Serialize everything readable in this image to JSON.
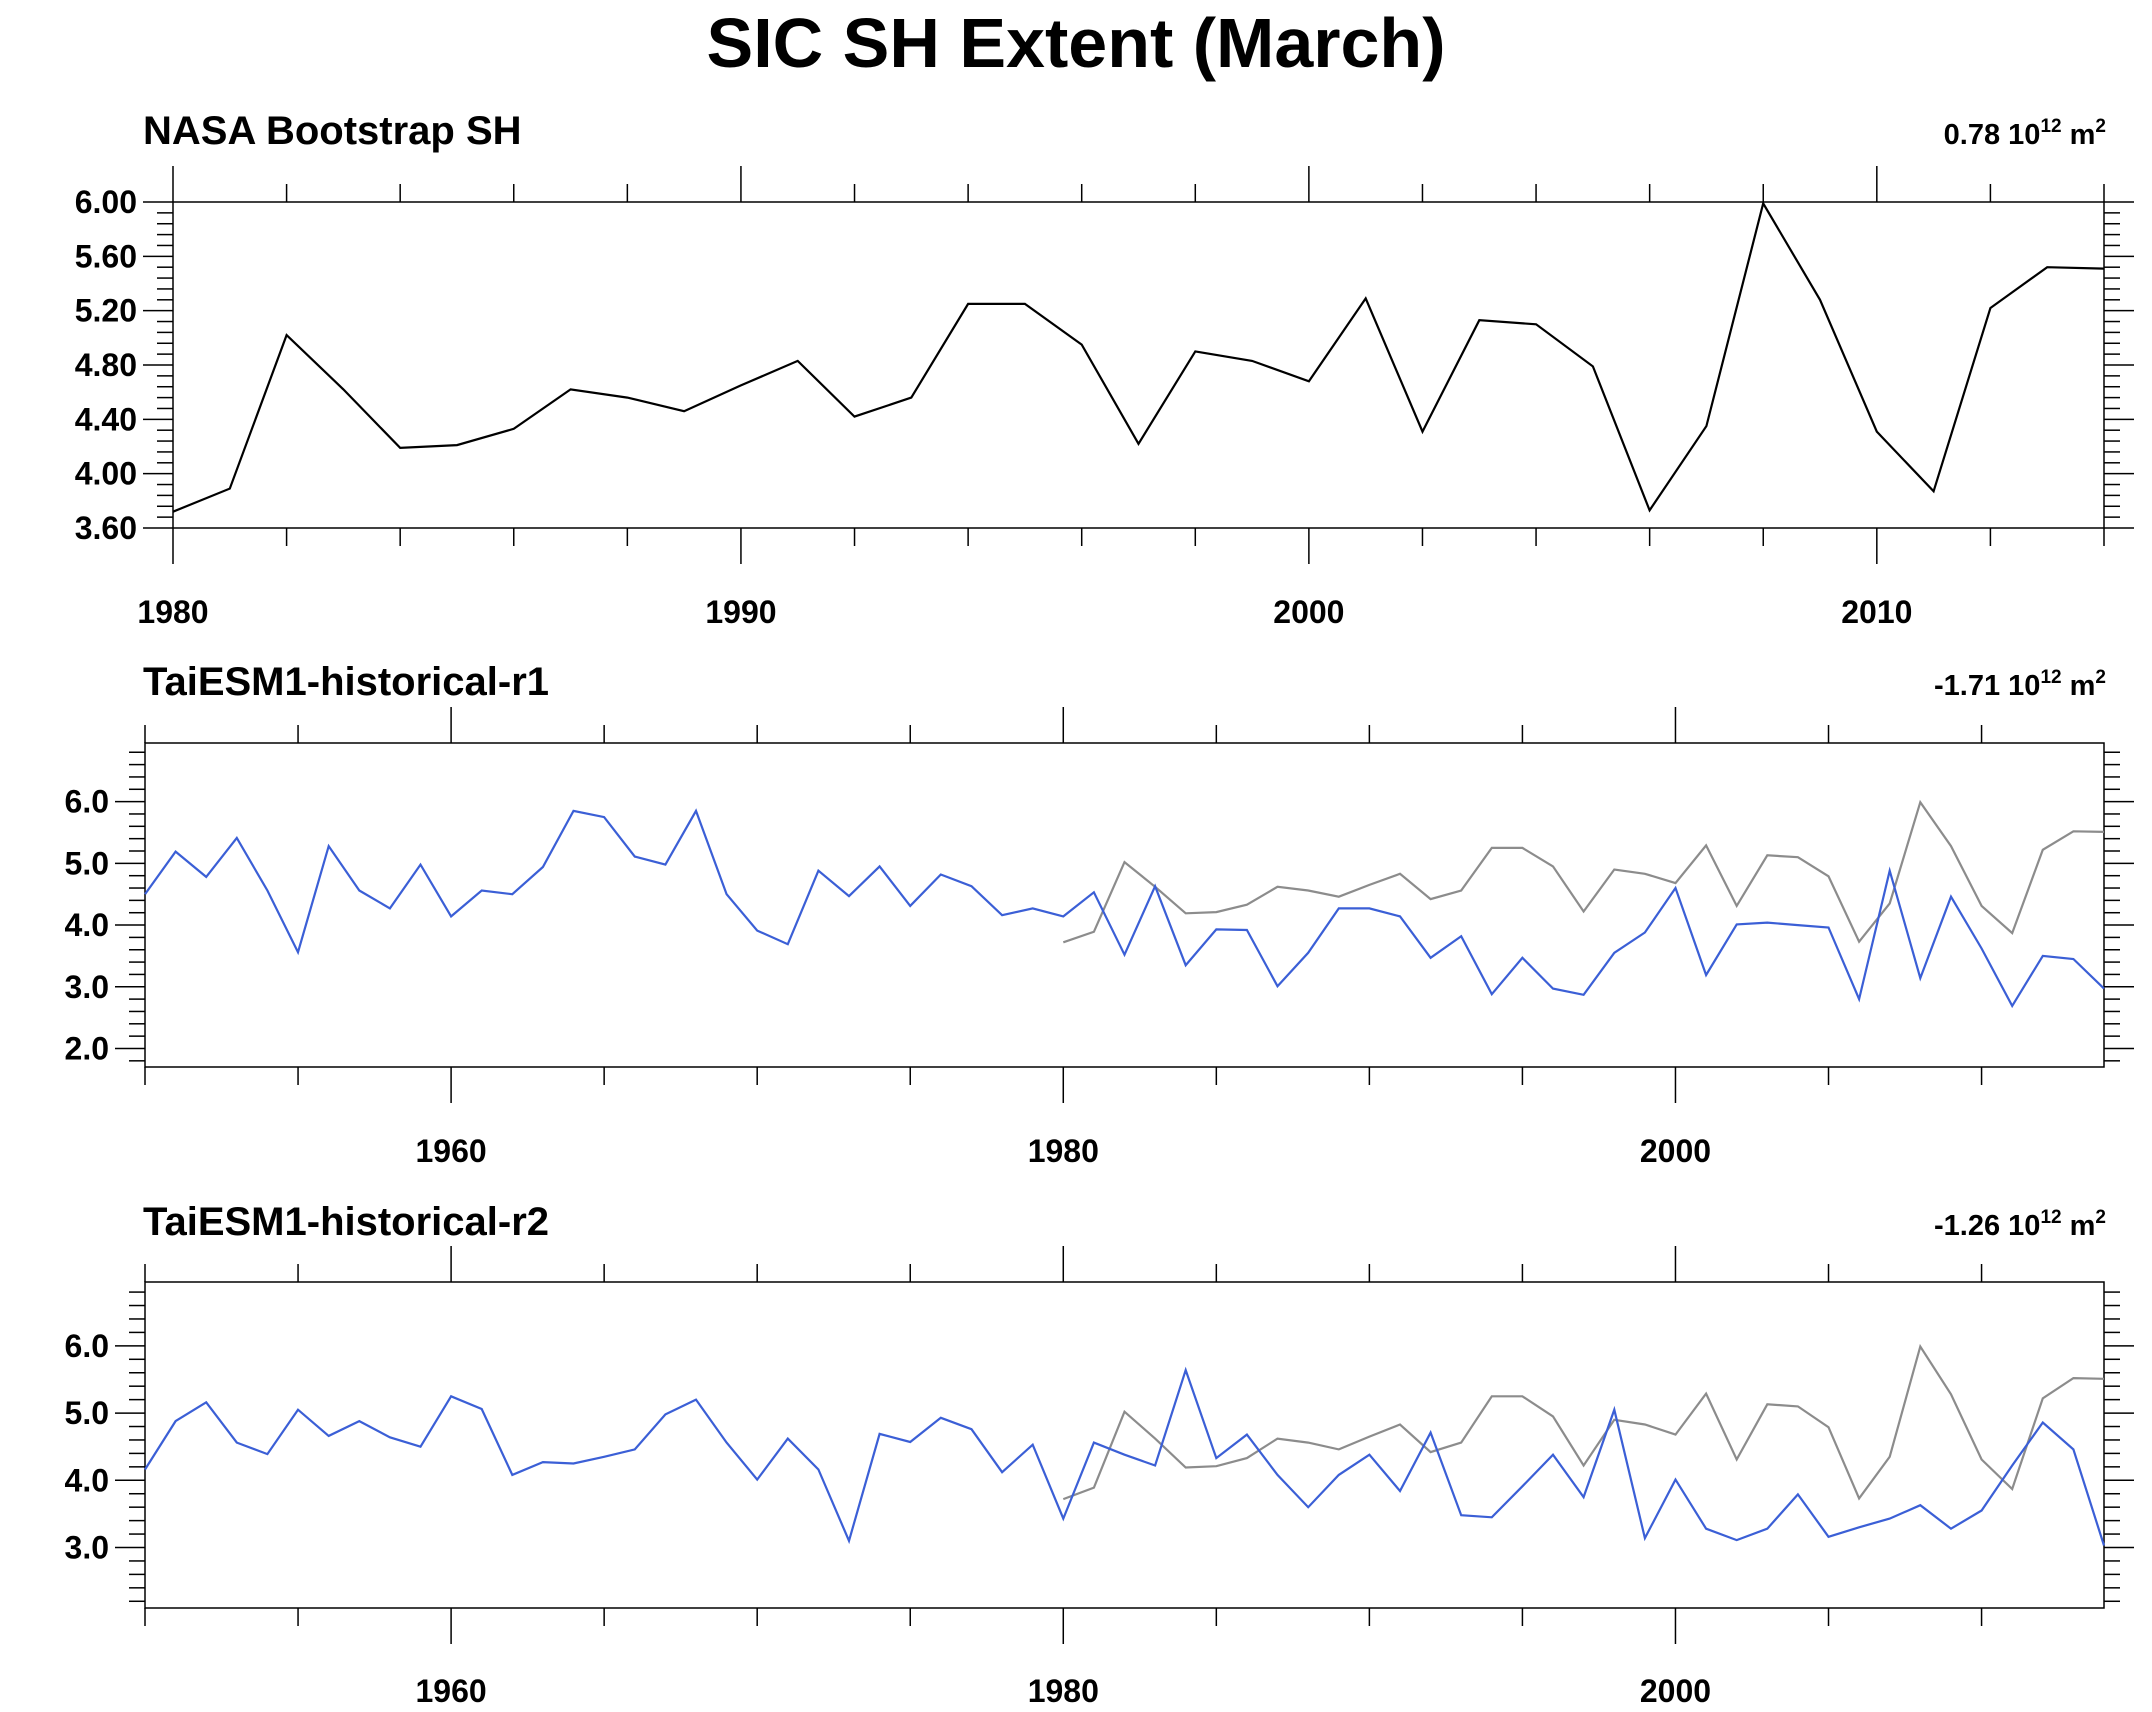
{
  "title": "SIC SH Extent (March)",
  "colors": {
    "obs": "#000000",
    "obs_overlay": "#8c8c8c",
    "model": "#3b5fd6"
  },
  "chart_data": [
    {
      "type": "line",
      "title": "NASA Bootstrap SH",
      "trend_value": "0.78",
      "trend_unit_base": "10",
      "trend_unit_exp": "12",
      "trend_unit": "m",
      "trend_unit_power": "2",
      "xlim": [
        1980,
        2014
      ],
      "ylim": [
        3.6,
        6.0
      ],
      "x_ticks": [
        1980,
        1990,
        2000,
        2010
      ],
      "y_ticks": [
        "3.60",
        "4.00",
        "4.40",
        "4.80",
        "5.20",
        "5.60",
        "6.00"
      ],
      "grid": false,
      "series": [
        {
          "color": "#000000",
          "x": [
            1980,
            1981,
            1982,
            1983,
            1984,
            1985,
            1986,
            1987,
            1988,
            1989,
            1990,
            1991,
            1992,
            1993,
            1994,
            1995,
            1996,
            1997,
            1998,
            1999,
            2000,
            2001,
            2002,
            2003,
            2004,
            2005,
            2006,
            2007,
            2008,
            2009,
            2010,
            2011,
            2012,
            2013,
            2014
          ],
          "y": [
            3.72,
            3.89,
            5.02,
            4.62,
            4.19,
            4.21,
            4.33,
            4.62,
            4.56,
            4.46,
            4.65,
            4.83,
            4.42,
            4.56,
            5.25,
            5.25,
            4.95,
            4.22,
            4.9,
            4.83,
            4.68,
            5.29,
            4.31,
            5.13,
            5.1,
            4.79,
            3.73,
            4.35,
            5.99,
            5.28,
            4.31,
            3.87,
            5.22,
            5.52,
            5.51
          ]
        }
      ]
    },
    {
      "type": "line",
      "title": "TaiESM1-historical-r1",
      "trend_value": "-1.71",
      "trend_unit_base": "10",
      "trend_unit_exp": "12",
      "trend_unit": "m",
      "trend_unit_power": "2",
      "xlim": [
        1950,
        2014
      ],
      "ylim": [
        1.7,
        6.95
      ],
      "x_ticks": [
        1960,
        1980,
        2000
      ],
      "y_ticks": [
        "2.0",
        "3.0",
        "4.0",
        "5.0",
        "6.0"
      ],
      "grid": false,
      "series": [
        {
          "color": "#3b5fd6",
          "x": [
            1950,
            1951,
            1952,
            1953,
            1954,
            1955,
            1956,
            1957,
            1958,
            1959,
            1960,
            1961,
            1962,
            1963,
            1964,
            1965,
            1966,
            1967,
            1968,
            1969,
            1970,
            1971,
            1972,
            1973,
            1974,
            1975,
            1976,
            1977,
            1978,
            1979,
            1980,
            1981,
            1982,
            1983,
            1984,
            1985,
            1986,
            1987,
            1988,
            1989,
            1990,
            1991,
            1992,
            1993,
            1994,
            1995,
            1996,
            1997,
            1998,
            1999,
            2000,
            2001,
            2002,
            2003,
            2004,
            2005,
            2006,
            2007,
            2008,
            2009,
            2010,
            2011,
            2012,
            2013,
            2014
          ],
          "y": [
            4.5,
            5.19,
            4.78,
            5.41,
            4.56,
            3.56,
            5.28,
            4.56,
            4.27,
            4.98,
            4.14,
            4.56,
            4.5,
            4.94,
            5.85,
            5.75,
            5.11,
            4.98,
            5.85,
            4.5,
            3.91,
            3.69,
            4.88,
            4.47,
            4.95,
            4.31,
            4.82,
            4.63,
            4.16,
            4.27,
            4.14,
            4.53,
            3.52,
            4.63,
            3.35,
            3.93,
            3.92,
            3.01,
            3.55,
            4.27,
            4.27,
            4.14,
            3.47,
            3.82,
            2.88,
            3.47,
            2.97,
            2.87,
            3.55,
            3.88,
            4.6,
            3.19,
            4.01,
            4.04,
            4.0,
            3.96,
            2.8,
            4.88,
            3.14,
            4.46,
            3.62,
            2.69,
            3.5,
            3.45,
            2.97
          ]
        },
        {
          "color": "#8c8c8c",
          "x": [
            1980,
            1981,
            1982,
            1983,
            1984,
            1985,
            1986,
            1987,
            1988,
            1989,
            1990,
            1991,
            1992,
            1993,
            1994,
            1995,
            1996,
            1997,
            1998,
            1999,
            2000,
            2001,
            2002,
            2003,
            2004,
            2005,
            2006,
            2007,
            2008,
            2009,
            2010,
            2011,
            2012,
            2013,
            2014
          ],
          "y": [
            3.72,
            3.89,
            5.02,
            4.62,
            4.19,
            4.21,
            4.33,
            4.62,
            4.56,
            4.46,
            4.65,
            4.83,
            4.42,
            4.56,
            5.25,
            5.25,
            4.95,
            4.22,
            4.9,
            4.83,
            4.68,
            5.29,
            4.31,
            5.13,
            5.1,
            4.79,
            3.73,
            4.35,
            5.99,
            5.28,
            4.31,
            3.87,
            5.22,
            5.52,
            5.51
          ]
        }
      ]
    },
    {
      "type": "line",
      "title": "TaiESM1-historical-r2",
      "trend_value": "-1.26",
      "trend_unit_base": "10",
      "trend_unit_exp": "12",
      "trend_unit": "m",
      "trend_unit_power": "2",
      "xlim": [
        1950,
        2014
      ],
      "ylim": [
        2.1,
        6.95
      ],
      "x_ticks": [
        1960,
        1980,
        2000
      ],
      "y_ticks": [
        "3.0",
        "4.0",
        "5.0",
        "6.0"
      ],
      "grid": false,
      "series": [
        {
          "color": "#3b5fd6",
          "x": [
            1950,
            1951,
            1952,
            1953,
            1954,
            1955,
            1956,
            1957,
            1958,
            1959,
            1960,
            1961,
            1962,
            1963,
            1964,
            1965,
            1966,
            1967,
            1968,
            1969,
            1970,
            1971,
            1972,
            1973,
            1974,
            1975,
            1976,
            1977,
            1978,
            1979,
            1980,
            1981,
            1982,
            1983,
            1984,
            1985,
            1986,
            1987,
            1988,
            1989,
            1990,
            1991,
            1992,
            1993,
            1994,
            1995,
            1996,
            1997,
            1998,
            1999,
            2000,
            2001,
            2002,
            2003,
            2004,
            2005,
            2006,
            2007,
            2008,
            2009,
            2010,
            2011,
            2012,
            2013,
            2014
          ],
          "y": [
            4.16,
            4.88,
            5.16,
            4.56,
            4.39,
            5.05,
            4.66,
            4.88,
            4.64,
            4.5,
            5.25,
            5.06,
            4.08,
            4.27,
            4.25,
            4.35,
            4.46,
            4.98,
            5.2,
            4.56,
            4.01,
            4.62,
            4.16,
            3.1,
            4.69,
            4.57,
            4.93,
            4.76,
            4.12,
            4.53,
            3.43,
            4.56,
            4.38,
            4.22,
            5.64,
            4.33,
            4.68,
            4.08,
            3.6,
            4.08,
            4.38,
            3.84,
            4.71,
            3.48,
            3.45,
            3.91,
            4.38,
            3.75,
            5.05,
            3.14,
            4.01,
            3.28,
            3.11,
            3.28,
            3.79,
            3.16,
            3.3,
            3.43,
            3.63,
            3.28,
            3.55,
            4.22,
            4.86,
            4.46,
            3.03
          ]
        },
        {
          "color": "#8c8c8c",
          "x": [
            1980,
            1981,
            1982,
            1983,
            1984,
            1985,
            1986,
            1987,
            1988,
            1989,
            1990,
            1991,
            1992,
            1993,
            1994,
            1995,
            1996,
            1997,
            1998,
            1999,
            2000,
            2001,
            2002,
            2003,
            2004,
            2005,
            2006,
            2007,
            2008,
            2009,
            2010,
            2011,
            2012,
            2013,
            2014
          ],
          "y": [
            3.72,
            3.89,
            5.02,
            4.62,
            4.19,
            4.21,
            4.33,
            4.62,
            4.56,
            4.46,
            4.65,
            4.83,
            4.42,
            4.56,
            5.25,
            5.25,
            4.95,
            4.22,
            4.9,
            4.83,
            4.68,
            5.29,
            4.31,
            5.13,
            5.1,
            4.79,
            3.73,
            4.35,
            5.99,
            5.28,
            4.31,
            3.87,
            5.22,
            5.52,
            5.51
          ]
        }
      ]
    }
  ]
}
